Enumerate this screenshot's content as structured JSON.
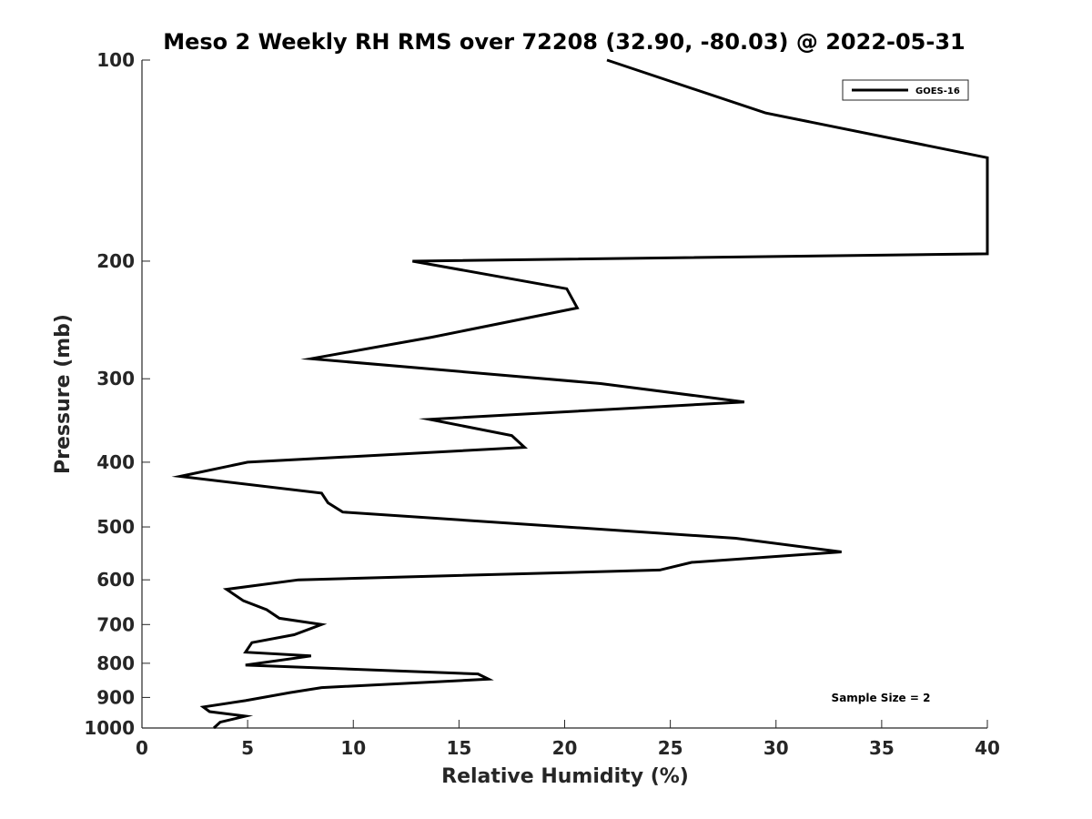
{
  "chart_data": {
    "type": "line",
    "title": "Meso 2 Weekly RH RMS over 72208 (32.90, -80.03) @ 2022-05-31",
    "xlabel": "Relative Humidity (%)",
    "ylabel": "Pressure (mb)",
    "xlim": [
      0,
      40
    ],
    "ylim": [
      1000,
      100
    ],
    "yscale": "log",
    "x_ticks": [
      0,
      5,
      10,
      15,
      20,
      25,
      30,
      35,
      40
    ],
    "y_ticks": [
      100,
      200,
      300,
      400,
      500,
      600,
      700,
      800,
      900,
      1000
    ],
    "legend": {
      "position": "top-right",
      "entries": [
        "GOES-16"
      ]
    },
    "annotation": "Sample Size = 2",
    "series": [
      {
        "name": "GOES-16",
        "points": [
          [
            22.0,
            100
          ],
          [
            29.5,
            120
          ],
          [
            40.0,
            140
          ],
          [
            40.0,
            195
          ],
          [
            12.8,
            200
          ],
          [
            20.1,
            220
          ],
          [
            20.6,
            235
          ],
          [
            13.7,
            260
          ],
          [
            8.0,
            280
          ],
          [
            21.7,
            305
          ],
          [
            28.5,
            325
          ],
          [
            13.6,
            345
          ],
          [
            17.5,
            365
          ],
          [
            18.1,
            380
          ],
          [
            5.0,
            400
          ],
          [
            1.8,
            420
          ],
          [
            8.5,
            445
          ],
          [
            8.8,
            460
          ],
          [
            9.5,
            475
          ],
          [
            28.1,
            520
          ],
          [
            33.1,
            545
          ],
          [
            26.0,
            565
          ],
          [
            24.5,
            580
          ],
          [
            7.4,
            600
          ],
          [
            4.0,
            620
          ],
          [
            4.8,
            645
          ],
          [
            5.9,
            665
          ],
          [
            6.5,
            685
          ],
          [
            8.5,
            700
          ],
          [
            7.2,
            725
          ],
          [
            5.2,
            745
          ],
          [
            4.9,
            770
          ],
          [
            8.0,
            780
          ],
          [
            4.9,
            805
          ],
          [
            15.9,
            830
          ],
          [
            16.4,
            845
          ],
          [
            8.5,
            870
          ],
          [
            7.0,
            885
          ],
          [
            4.9,
            910
          ],
          [
            2.9,
            930
          ],
          [
            3.2,
            945
          ],
          [
            4.9,
            960
          ],
          [
            3.7,
            980
          ],
          [
            3.4,
            1000
          ]
        ]
      }
    ]
  },
  "colors": {
    "line": "#000000",
    "axis": "#262626"
  }
}
